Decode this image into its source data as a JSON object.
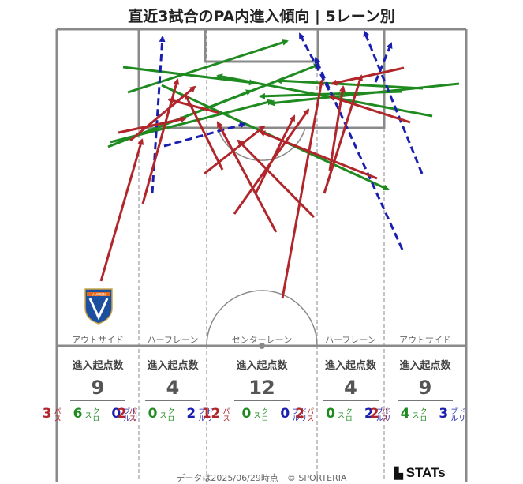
{
  "title": "直近3試合のPA内進入傾向 | 5レーン別",
  "lanes": [
    {
      "label": "アウトサイド"
    },
    {
      "label": "ハーフレーン"
    },
    {
      "label": "センターレーン"
    },
    {
      "label": "ハーフレーン"
    },
    {
      "label": "アウトサイド"
    }
  ],
  "stats": {
    "heading": "進入起点数",
    "pass_label": "パス",
    "cross_label": "クロス",
    "dribble_label": "ドリブル",
    "items": [
      {
        "total": "9",
        "pass": "3",
        "cross": "6",
        "dribble": "0"
      },
      {
        "total": "4",
        "pass": "2",
        "cross": "0",
        "dribble": "2"
      },
      {
        "total": "12",
        "pass": "12",
        "cross": "0",
        "dribble": "0"
      },
      {
        "total": "4",
        "pass": "2",
        "cross": "0",
        "dribble": "2"
      },
      {
        "total": "9",
        "pass": "2",
        "cross": "4",
        "dribble": "3"
      }
    ]
  },
  "colors": {
    "pass": "#b0262a",
    "cross": "#1f8a1f",
    "dribble": "#1a1fb0",
    "lines": "#8a8a8a"
  },
  "footer": "データは2025/06/29時点　© SPORTERIA",
  "brand": "STATs",
  "crest_text": "V·VAREN"
}
